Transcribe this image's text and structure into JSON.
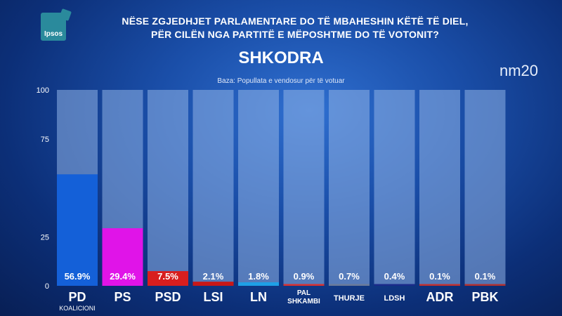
{
  "header": {
    "logo_text": "Ipsos",
    "question_line1": "NËSE ZGJEDHJET PARLAMENTARE DO TË MBAHESHIN KËTË TË DIEL,",
    "question_line2": "PËR CILËN NGA PARTITË E MËPOSHTME DO TË VOTONIT?",
    "region": "SHKODRA",
    "base_note": "Baza: Popullata e vendosur për të votuar",
    "brand": "nm20"
  },
  "chart_data": {
    "type": "bar",
    "categories": [
      "PD",
      "PS",
      "PSD",
      "LSI",
      "LN",
      "PAL SHKAMBI",
      "THURJE",
      "LDSH",
      "ADR",
      "PBK"
    ],
    "sublabels": [
      "KOALICIONI",
      "",
      "",
      "",
      "",
      "",
      "",
      "",
      "",
      ""
    ],
    "values": [
      56.9,
      29.4,
      7.5,
      2.1,
      1.8,
      0.9,
      0.7,
      0.4,
      0.1,
      0.1
    ],
    "value_labels": [
      "56.9%",
      "29.4%",
      "7.5%",
      "2.1%",
      "1.8%",
      "0.9%",
      "0.7%",
      "0.4%",
      "0.1%",
      "0.1%"
    ],
    "colors": [
      "#1460d8",
      "#e014e8",
      "#d81e1e",
      "#c81818",
      "#1fa0e6",
      "#d83030",
      "#6a7a9a",
      "#1a2a8a",
      "#c03030",
      "#b03030"
    ],
    "yticks": [
      0,
      25,
      75,
      100
    ],
    "ylim": [
      0,
      100
    ]
  }
}
